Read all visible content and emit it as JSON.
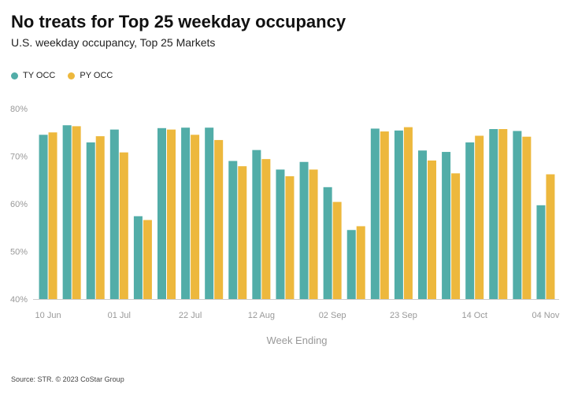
{
  "title": "No treats for Top 25 weekday occupancy",
  "subtitle": "U.S. weekday occupancy, Top 25 Markets",
  "source": "Source: STR. © 2023 CoStar Group",
  "colors": {
    "ty": "#52ADA8",
    "py": "#EDB83D",
    "axis": "#cccccc"
  },
  "chart_data": {
    "type": "bar",
    "xlabel": "Week Ending",
    "ylabel": "",
    "ylim": [
      40,
      80
    ],
    "yticks": [
      "40%",
      "50%",
      "60%",
      "70%",
      "80%"
    ],
    "yticks_values": [
      40,
      50,
      60,
      70,
      80
    ],
    "grid": false,
    "legend": "top-left",
    "tick_labels": [
      {
        "index": 0,
        "label": "10 Jun"
      },
      {
        "index": 3,
        "label": "01 Jul"
      },
      {
        "index": 6,
        "label": "22 Jul"
      },
      {
        "index": 9,
        "label": "12 Aug"
      },
      {
        "index": 12,
        "label": "02 Sep"
      },
      {
        "index": 15,
        "label": "23 Sep"
      },
      {
        "index": 18,
        "label": "14 Oct"
      },
      {
        "index": 21,
        "label": "04 Nov"
      }
    ],
    "series": [
      {
        "name": "TY OCC",
        "values": [
          74.5,
          76.5,
          72.9,
          75.6,
          57.4,
          75.9,
          76.0,
          76.0,
          69.0,
          71.3,
          67.2,
          68.8,
          63.5,
          54.5,
          75.8,
          75.4,
          71.2,
          70.9,
          72.9,
          75.7,
          75.3,
          59.7
        ]
      },
      {
        "name": "PY OCC",
        "values": [
          75.0,
          76.3,
          74.2,
          70.8,
          56.6,
          75.6,
          74.5,
          73.4,
          67.9,
          69.4,
          65.8,
          67.2,
          60.4,
          55.3,
          75.2,
          76.1,
          69.1,
          66.4,
          74.3,
          75.7,
          74.1,
          66.2
        ]
      }
    ]
  }
}
